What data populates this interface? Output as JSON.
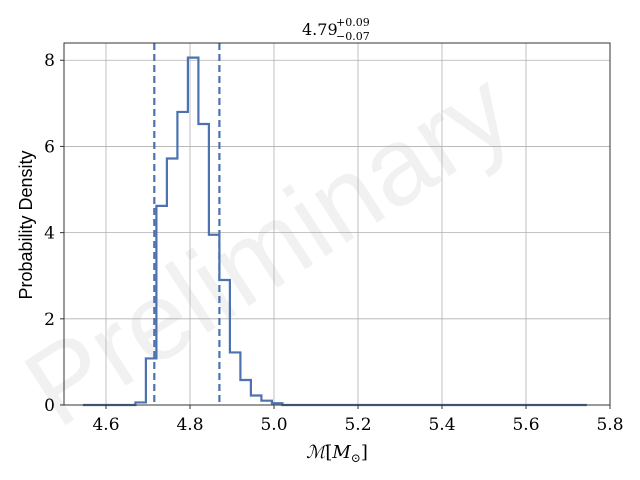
{
  "chart_data": {
    "type": "histogram",
    "title": {
      "main": "4.79",
      "sup": "+0.09",
      "sub": "−0.07"
    },
    "xlabel": {
      "script": "ℳ",
      "inner": "M",
      "sub": "⊙"
    },
    "ylabel": "Probability Density",
    "watermark": "Preliminary",
    "xlim": [
      4.5,
      5.8
    ],
    "ylim": [
      0,
      8.4
    ],
    "xticks": [
      4.6,
      4.8,
      5.0,
      5.2,
      5.4,
      5.6,
      5.8
    ],
    "xtick_labels": [
      "4.6",
      "4.8",
      "5.0",
      "5.2",
      "5.4",
      "5.6",
      "5.8"
    ],
    "yticks": [
      0,
      2,
      4,
      6,
      8
    ],
    "ytick_labels": [
      "0",
      "2",
      "4",
      "6",
      "8"
    ],
    "grid": true,
    "colors": {
      "series": "#4c72b0",
      "grid": "#b0b0b0"
    },
    "bin_edges": [
      4.545,
      4.57,
      4.595,
      4.62,
      4.645,
      4.67,
      4.695,
      4.72,
      4.745,
      4.77,
      4.795,
      4.82,
      4.845,
      4.87,
      4.895,
      4.92,
      4.945,
      4.97,
      4.995,
      5.02,
      5.745
    ],
    "densities": [
      0.0,
      0.0,
      0.0,
      0.0,
      0.0,
      0.06,
      1.08,
      4.62,
      5.72,
      6.8,
      8.06,
      6.52,
      3.95,
      2.9,
      1.22,
      0.58,
      0.22,
      0.1,
      0.04,
      0.0
    ],
    "ci_lines": [
      4.715,
      4.87
    ]
  }
}
